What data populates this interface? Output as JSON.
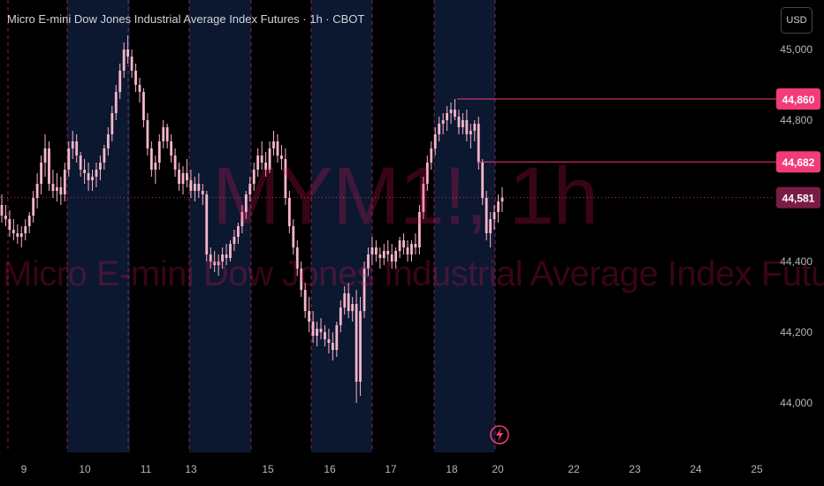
{
  "header": {
    "title": "Micro E-mini Dow Jones Industrial Average Index Futures · 1h · CBOT",
    "currency_button": "USD"
  },
  "watermark": {
    "symbol": "MYM1!, 1h",
    "description": "Micro E-mini Dow Jones Industrial Average Index Futures"
  },
  "colors": {
    "background": "#000000",
    "session_shade": "#0c1730",
    "candle": "#f7b6c9",
    "accent": "#f23c7a",
    "last_price_label": "#7a1d46",
    "grid_dash": "#f23c7a",
    "axis_text": "#b2b5be"
  },
  "icons": {
    "alert": "lightning-icon"
  },
  "chart_data": {
    "type": "candlestick",
    "title": "Micro E-mini Dow Jones Industrial Average Index Futures · 1h · CBOT",
    "xlabel": "",
    "ylabel": "",
    "y_ticks": [
      "45,000",
      "44,800",
      "44,400",
      "44,200",
      "44,000"
    ],
    "y_tick_values": [
      45000,
      44800,
      44400,
      44200,
      44000
    ],
    "x_ticks": [
      "9",
      "10",
      "11",
      "13",
      "15",
      "16",
      "17",
      "18",
      "20",
      "22",
      "23",
      "24",
      "25"
    ],
    "ylim": [
      43930,
      45100
    ],
    "price_levels": [
      {
        "label": "44,860",
        "value": 44860
      },
      {
        "label": "44,682",
        "value": 44682
      }
    ],
    "last_price": {
      "label": "44,581",
      "value": 44581
    },
    "ohlc": [
      [
        44560,
        44590,
        44510,
        44530
      ],
      [
        44530,
        44560,
        44500,
        44520
      ],
      [
        44520,
        44545,
        44470,
        44490
      ],
      [
        44490,
        44520,
        44460,
        44480
      ],
      [
        44480,
        44505,
        44450,
        44470
      ],
      [
        44470,
        44500,
        44440,
        44480
      ],
      [
        44480,
        44520,
        44460,
        44500
      ],
      [
        44500,
        44540,
        44480,
        44530
      ],
      [
        44530,
        44600,
        44510,
        44580
      ],
      [
        44580,
        44650,
        44550,
        44620
      ],
      [
        44620,
        44700,
        44590,
        44680
      ],
      [
        44680,
        44760,
        44640,
        44720
      ],
      [
        44720,
        44740,
        44600,
        44620
      ],
      [
        44620,
        44660,
        44580,
        44600
      ],
      [
        44600,
        44650,
        44570,
        44610
      ],
      [
        44610,
        44640,
        44560,
        44590
      ],
      [
        44590,
        44680,
        44570,
        44660
      ],
      [
        44660,
        44740,
        44640,
        44720
      ],
      [
        44720,
        44770,
        44690,
        44740
      ],
      [
        44740,
        44760,
        44680,
        44700
      ],
      [
        44700,
        44710,
        44640,
        44660
      ],
      [
        44660,
        44690,
        44620,
        44650
      ],
      [
        44650,
        44680,
        44600,
        44630
      ],
      [
        44630,
        44660,
        44600,
        44640
      ],
      [
        44640,
        44680,
        44610,
        44660
      ],
      [
        44660,
        44700,
        44630,
        44680
      ],
      [
        44680,
        44730,
        44660,
        44720
      ],
      [
        44720,
        44780,
        44700,
        44760
      ],
      [
        44760,
        44840,
        44740,
        44820
      ],
      [
        44820,
        44900,
        44800,
        44880
      ],
      [
        44880,
        44960,
        44860,
        44940
      ],
      [
        44940,
        45020,
        44920,
        45000
      ],
      [
        45000,
        45040,
        44960,
        44980
      ],
      [
        44980,
        45000,
        44920,
        44940
      ],
      [
        44940,
        44960,
        44880,
        44900
      ],
      [
        44900,
        44920,
        44850,
        44880
      ],
      [
        44880,
        44890,
        44780,
        44800
      ],
      [
        44800,
        44820,
        44700,
        44720
      ],
      [
        44720,
        44740,
        44640,
        44660
      ],
      [
        44660,
        44700,
        44620,
        44680
      ],
      [
        44680,
        44760,
        44660,
        44740
      ],
      [
        44740,
        44800,
        44720,
        44780
      ],
      [
        44780,
        44790,
        44720,
        44740
      ],
      [
        44740,
        44760,
        44680,
        44700
      ],
      [
        44700,
        44720,
        44640,
        44660
      ],
      [
        44660,
        44680,
        44600,
        44620
      ],
      [
        44620,
        44670,
        44590,
        44650
      ],
      [
        44650,
        44690,
        44610,
        44630
      ],
      [
        44630,
        44660,
        44580,
        44600
      ],
      [
        44600,
        44640,
        44570,
        44620
      ],
      [
        44620,
        44650,
        44580,
        44600
      ],
      [
        44600,
        44620,
        44560,
        44590
      ],
      [
        44590,
        44600,
        44400,
        44420
      ],
      [
        44420,
        44440,
        44380,
        44400
      ],
      [
        44400,
        44430,
        44370,
        44390
      ],
      [
        44390,
        44420,
        44360,
        44400
      ],
      [
        44400,
        44440,
        44380,
        44420
      ],
      [
        44420,
        44450,
        44390,
        44410
      ],
      [
        44410,
        44460,
        44400,
        44450
      ],
      [
        44450,
        44490,
        44430,
        44470
      ],
      [
        44470,
        44510,
        44450,
        44500
      ],
      [
        44500,
        44560,
        44480,
        44540
      ],
      [
        44540,
        44600,
        44520,
        44590
      ],
      [
        44590,
        44640,
        44570,
        44620
      ],
      [
        44620,
        44680,
        44600,
        44660
      ],
      [
        44660,
        44720,
        44640,
        44700
      ],
      [
        44700,
        44740,
        44660,
        44680
      ],
      [
        44680,
        44710,
        44640,
        44660
      ],
      [
        44660,
        44740,
        44650,
        44720
      ],
      [
        44720,
        44770,
        44700,
        44740
      ],
      [
        44740,
        44760,
        44680,
        44700
      ],
      [
        44700,
        44730,
        44660,
        44690
      ],
      [
        44690,
        44720,
        44560,
        44580
      ],
      [
        44580,
        44600,
        44480,
        44500
      ],
      [
        44500,
        44520,
        44420,
        44440
      ],
      [
        44440,
        44460,
        44360,
        44380
      ],
      [
        44380,
        44400,
        44300,
        44320
      ],
      [
        44320,
        44340,
        44240,
        44260
      ],
      [
        44260,
        44300,
        44200,
        44230
      ],
      [
        44230,
        44260,
        44170,
        44190
      ],
      [
        44190,
        44230,
        44160,
        44210
      ],
      [
        44210,
        44240,
        44180,
        44200
      ],
      [
        44200,
        44220,
        44160,
        44180
      ],
      [
        44180,
        44210,
        44140,
        44170
      ],
      [
        44170,
        44200,
        44120,
        44150
      ],
      [
        44150,
        44230,
        44130,
        44220
      ],
      [
        44220,
        44290,
        44200,
        44270
      ],
      [
        44270,
        44330,
        44250,
        44310
      ],
      [
        44310,
        44340,
        44240,
        44260
      ],
      [
        44260,
        44300,
        44230,
        44280
      ],
      [
        44280,
        44320,
        44000,
        44060
      ],
      [
        44060,
        44300,
        44020,
        44260
      ],
      [
        44260,
        44400,
        44240,
        44380
      ],
      [
        44380,
        44440,
        44360,
        44420
      ],
      [
        44420,
        44470,
        44390,
        44440
      ],
      [
        44440,
        44460,
        44400,
        44420
      ],
      [
        44420,
        44440,
        44380,
        44410
      ],
      [
        44410,
        44450,
        44390,
        44430
      ],
      [
        44430,
        44460,
        44400,
        44420
      ],
      [
        44420,
        44450,
        44380,
        44400
      ],
      [
        44400,
        44440,
        44380,
        44430
      ],
      [
        44430,
        44470,
        44410,
        44460
      ],
      [
        44460,
        44480,
        44420,
        44440
      ],
      [
        44440,
        44460,
        44400,
        44420
      ],
      [
        44420,
        44460,
        44400,
        44450
      ],
      [
        44450,
        44480,
        44420,
        44440
      ],
      [
        44440,
        44560,
        44420,
        44540
      ],
      [
        44540,
        44640,
        44520,
        44620
      ],
      [
        44620,
        44700,
        44600,
        44680
      ],
      [
        44680,
        44740,
        44660,
        44720
      ],
      [
        44720,
        44780,
        44700,
        44760
      ],
      [
        44760,
        44810,
        44740,
        44790
      ],
      [
        44790,
        44820,
        44760,
        44800
      ],
      [
        44800,
        44840,
        44770,
        44820
      ],
      [
        44820,
        44850,
        44790,
        44830
      ],
      [
        44830,
        44860,
        44800,
        44810
      ],
      [
        44810,
        44830,
        44760,
        44780
      ],
      [
        44780,
        44820,
        44760,
        44800
      ],
      [
        44800,
        44830,
        44740,
        44760
      ],
      [
        44760,
        44790,
        44720,
        44770
      ],
      [
        44770,
        44800,
        44740,
        44790
      ],
      [
        44790,
        44810,
        44660,
        44680
      ],
      [
        44680,
        44690,
        44560,
        44580
      ],
      [
        44580,
        44600,
        44460,
        44480
      ],
      [
        44480,
        44540,
        44440,
        44520
      ],
      [
        44520,
        44560,
        44490,
        44540
      ],
      [
        44540,
        44590,
        44510,
        44570
      ],
      [
        44570,
        44610,
        44540,
        44581
      ]
    ]
  }
}
